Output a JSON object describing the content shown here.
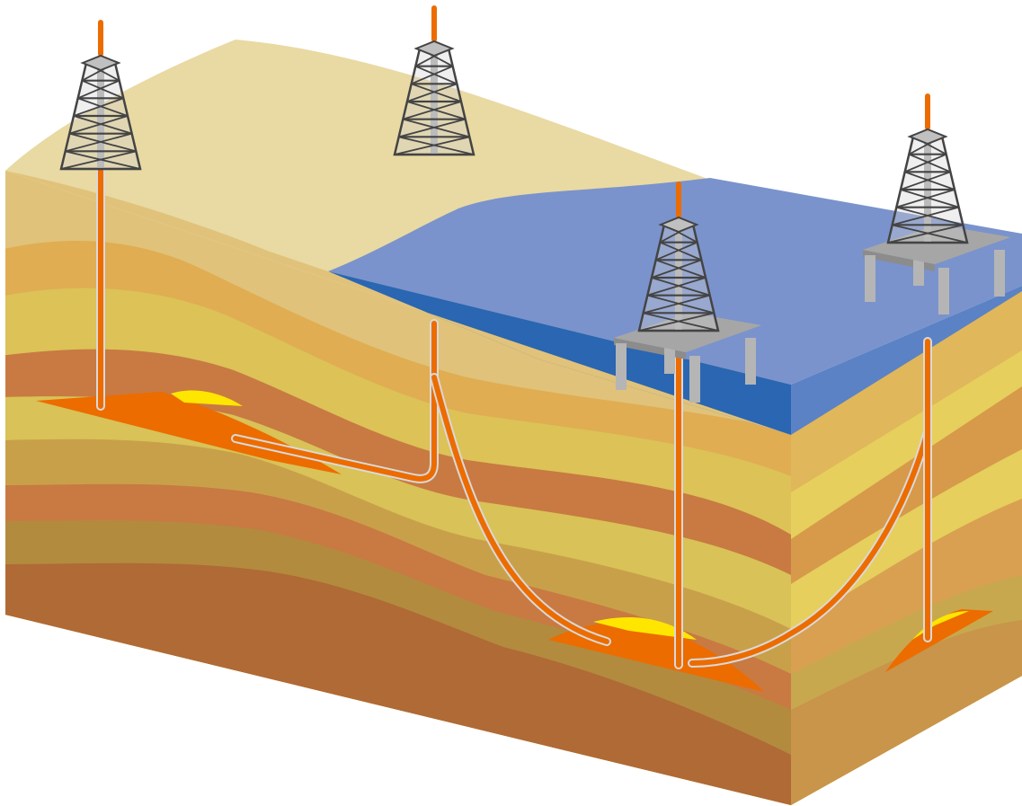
{
  "colors": {
    "land_surface": "#e9d9a3",
    "sea_surface": "#7a93cc",
    "sea_edge": "#2a66b2",
    "sea_right_edge": "#5b82c4",
    "strata": [
      "#e0c27a",
      "#e0ad52",
      "#dcc257",
      "#c87a42",
      "#d9c257",
      "#c9a04a",
      "#c87a42",
      "#b38b3e",
      "#b06a36"
    ],
    "right_strata": [
      "#e0b75a",
      "#e6cf5c",
      "#d69a4a",
      "#e6cf5c",
      "#d9a052",
      "#c8a84e",
      "#c8954a"
    ],
    "reservoir": "#ec6c00",
    "reservoir_top": "#ffe600",
    "pipe": "#ec6c00",
    "pipe_casing": "#d9d9d9",
    "derrick": "#444444",
    "platform": "#a6a6a6"
  },
  "icons": {
    "land_rig": "oil-derrick-icon",
    "offshore_rig": "offshore-platform-icon"
  },
  "scene": {
    "land_rigs": 2,
    "offshore_rigs": 2,
    "wells": [
      "vertical",
      "horizontal",
      "directional",
      "vertical",
      "directional",
      "vertical"
    ]
  }
}
